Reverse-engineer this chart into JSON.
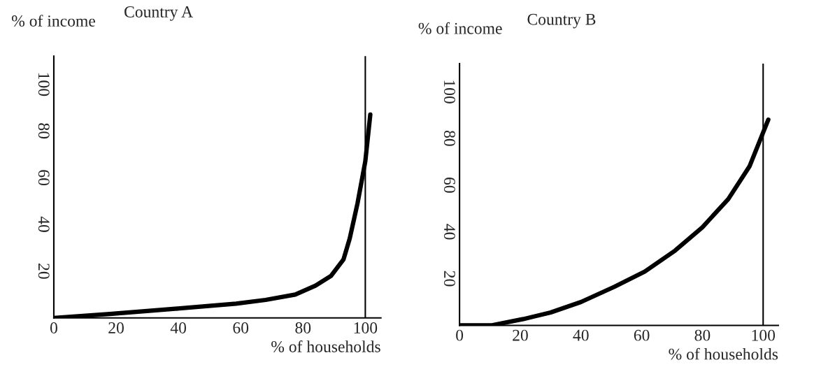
{
  "chart_data": [
    {
      "type": "line",
      "title": "Country A",
      "xlabel": "% of households",
      "ylabel": "% of income",
      "x": [
        0,
        18,
        39,
        58.5,
        68,
        77.5,
        84,
        89,
        93,
        95,
        97.5,
        100,
        101.6
      ],
      "series": [
        {
          "color": "#000000",
          "values": [
            0,
            1.7,
            3.9,
            6.1,
            7.7,
            10,
            13.8,
            18,
            25,
            34,
            49,
            67,
            87
          ]
        }
      ],
      "xlim": [
        0,
        105
      ],
      "ylim": [
        0,
        112
      ],
      "xticks": [
        0,
        20,
        40,
        60,
        80,
        100
      ],
      "yticks": [
        20,
        40,
        60,
        80,
        100
      ],
      "ref_lines": [
        {
          "axis": "x",
          "value": 100,
          "color": "#000000"
        }
      ],
      "grid": false,
      "legend": false
    },
    {
      "type": "line",
      "title": "Country B",
      "xlabel": "% of households",
      "ylabel": "% of income",
      "x": [
        0,
        10.4,
        21,
        30,
        40,
        51,
        61,
        71,
        80,
        88.5,
        95.5,
        101.7
      ],
      "series": [
        {
          "color": "#000000",
          "values": [
            0,
            0,
            2.7,
            5.5,
            10,
            16.5,
            23,
            32,
            42,
            54,
            68,
            88
          ]
        }
      ],
      "xlim": [
        0,
        105
      ],
      "ylim": [
        0,
        112
      ],
      "xticks": [
        0,
        20,
        40,
        60,
        80,
        100
      ],
      "yticks": [
        20,
        40,
        60,
        80,
        100
      ],
      "ref_lines": [
        {
          "axis": "x",
          "value": 100,
          "color": "#000000"
        }
      ],
      "grid": false,
      "legend": false
    }
  ]
}
